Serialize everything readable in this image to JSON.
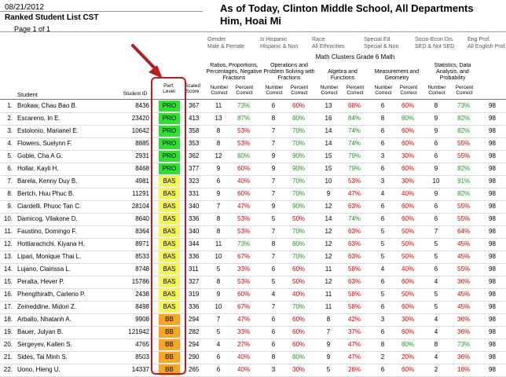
{
  "header": {
    "date": "08/21/2012",
    "report_title": "Ranked Student List CST",
    "page_label": "Page 1 of 1",
    "main_title": "As of Today, Clinton Middle School, All Departments",
    "sub_title": "Him, Hoai Mi"
  },
  "filters": [
    {
      "label": "Gender",
      "value": "Male & Female"
    },
    {
      "label": "Is Hispanic",
      "value": "Hispanic & Non"
    },
    {
      "label": "Race",
      "value": "All Ethnicities"
    },
    {
      "label": "Special Ed.",
      "value": "Special & Non"
    },
    {
      "label": "Socio-Econ Dis.",
      "value": "SED & Not SED"
    },
    {
      "label": "Eng Prof.",
      "value": "All English Prof."
    }
  ],
  "group_header": "Math Clusters Grade 6 Math",
  "clusters": [
    "Ratios, Proportions, Percentages, Negative Fractions",
    "Operations and Problem Solving with Fractions",
    "Algebra and Functions",
    "Measurement and Geometry",
    "Statistics, Data Analysis, and Probability"
  ],
  "columns": {
    "student": "Student",
    "student_id": "Student ID",
    "perf_level": "Perf. Level",
    "scaled_score": "Scaled Score",
    "number_correct": "Number Correct",
    "percent_correct": "Percent Correct"
  },
  "colors": {
    "PRO": "#33dd33",
    "BAS": "#f7f35a",
    "BB": "#f5a623",
    "good": "#1a9a1a",
    "bad": "#d40000",
    "callout": "#b91d1d"
  },
  "students": [
    {
      "rank": "1.",
      "name": "Brokaw, Chau Bao B.",
      "id": "8436",
      "level": "PRO",
      "score": "367",
      "c": [
        [
          "11",
          "73%"
        ],
        [
          "6",
          "60%"
        ],
        [
          "13",
          "68%"
        ],
        [
          "6",
          "60%"
        ],
        [
          "8",
          "73%"
        ]
      ],
      "last": "98"
    },
    {
      "rank": "2.",
      "name": "Escareno, In E.",
      "id": "23420",
      "level": "PRO",
      "score": "413",
      "c": [
        [
          "13",
          "87%"
        ],
        [
          "8",
          "80%"
        ],
        [
          "16",
          "84%"
        ],
        [
          "8",
          "80%"
        ],
        [
          "9",
          "82%"
        ]
      ],
      "last": "98"
    },
    {
      "rank": "3.",
      "name": "Estolonio, Marianel E.",
      "id": "10642",
      "level": "PRO",
      "score": "358",
      "c": [
        [
          "8",
          "53%"
        ],
        [
          "7",
          "70%"
        ],
        [
          "14",
          "74%"
        ],
        [
          "6",
          "60%"
        ],
        [
          "9",
          "82%"
        ]
      ],
      "last": "98"
    },
    {
      "rank": "4.",
      "name": "Flowers, Suelynn F.",
      "id": "8885",
      "level": "PRO",
      "score": "353",
      "c": [
        [
          "8",
          "53%"
        ],
        [
          "7",
          "70%"
        ],
        [
          "14",
          "74%"
        ],
        [
          "6",
          "60%"
        ],
        [
          "6",
          "55%"
        ]
      ],
      "last": "98"
    },
    {
      "rank": "5.",
      "name": "Goble, Cha A G.",
      "id": "2931",
      "level": "PRO",
      "score": "362",
      "c": [
        [
          "12",
          "80%"
        ],
        [
          "9",
          "90%"
        ],
        [
          "15",
          "79%"
        ],
        [
          "3",
          "30%"
        ],
        [
          "6",
          "55%"
        ]
      ],
      "last": "98"
    },
    {
      "rank": "6.",
      "name": "Hollar, Kayli H.",
      "id": "8468",
      "level": "PRO",
      "score": "377",
      "c": [
        [
          "9",
          "60%"
        ],
        [
          "9",
          "90%"
        ],
        [
          "15",
          "79%"
        ],
        [
          "6",
          "60%"
        ],
        [
          "9",
          "82%"
        ]
      ],
      "last": "98"
    },
    {
      "rank": "7.",
      "name": "Barela, Kenny Duy B.",
      "id": "4981",
      "level": "BAS",
      "score": "323",
      "c": [
        [
          "6",
          "40%"
        ],
        [
          "7",
          "70%"
        ],
        [
          "10",
          "53%"
        ],
        [
          "3",
          "30%"
        ],
        [
          "10",
          "91%"
        ]
      ],
      "last": "98"
    },
    {
      "rank": "8.",
      "name": "Bertch, Huu Phuc B.",
      "id": "11291",
      "level": "BAS",
      "score": "331",
      "c": [
        [
          "9",
          "60%"
        ],
        [
          "7",
          "70%"
        ],
        [
          "9",
          "47%"
        ],
        [
          "4",
          "40%"
        ],
        [
          "9",
          "82%"
        ]
      ],
      "last": "98"
    },
    {
      "rank": "9.",
      "name": "Ciardelli, Phuoc Tan C.",
      "id": "28104",
      "level": "BAS",
      "score": "340",
      "c": [
        [
          "7",
          "47%"
        ],
        [
          "9",
          "90%"
        ],
        [
          "12",
          "63%"
        ],
        [
          "6",
          "60%"
        ],
        [
          "6",
          "55%"
        ]
      ],
      "last": "98"
    },
    {
      "rank": "10.",
      "name": "Damicog, Vilakone D.",
      "id": "8640",
      "level": "BAS",
      "score": "336",
      "c": [
        [
          "8",
          "53%"
        ],
        [
          "5",
          "50%"
        ],
        [
          "14",
          "74%"
        ],
        [
          "6",
          "60%"
        ],
        [
          "6",
          "55%"
        ]
      ],
      "last": "98"
    },
    {
      "rank": "11.",
      "name": "Faustino, Domingo F.",
      "id": "8364",
      "level": "BAS",
      "score": "340",
      "c": [
        [
          "8",
          "53%"
        ],
        [
          "7",
          "70%"
        ],
        [
          "12",
          "63%"
        ],
        [
          "5",
          "50%"
        ],
        [
          "7",
          "64%"
        ]
      ],
      "last": "98"
    },
    {
      "rank": "12.",
      "name": "Hottiarachchi, Kiyana H.",
      "id": "8971",
      "level": "BAS",
      "score": "344",
      "c": [
        [
          "11",
          "73%"
        ],
        [
          "8",
          "80%"
        ],
        [
          "12",
          "63%"
        ],
        [
          "5",
          "50%"
        ],
        [
          "5",
          "45%"
        ]
      ],
      "last": "98"
    },
    {
      "rank": "13.",
      "name": "Lipari, Monique Thai L.",
      "id": "8533",
      "level": "BAS",
      "score": "336",
      "c": [
        [
          "10",
          "67%"
        ],
        [
          "7",
          "70%"
        ],
        [
          "12",
          "63%"
        ],
        [
          "5",
          "50%"
        ],
        [
          "5",
          "45%"
        ]
      ],
      "last": "98"
    },
    {
      "rank": "14.",
      "name": "Lujano, Clairissa L.",
      "id": "8748",
      "level": "BAS",
      "score": "311",
      "c": [
        [
          "5",
          "33%"
        ],
        [
          "6",
          "60%"
        ],
        [
          "11",
          "58%"
        ],
        [
          "4",
          "40%"
        ],
        [
          "6",
          "55%"
        ]
      ],
      "last": "98"
    },
    {
      "rank": "15.",
      "name": "Peralta, Hever P.",
      "id": "15786",
      "level": "BAS",
      "score": "327",
      "c": [
        [
          "8",
          "53%"
        ],
        [
          "5",
          "50%"
        ],
        [
          "12",
          "63%"
        ],
        [
          "6",
          "60%"
        ],
        [
          "4",
          "36%"
        ]
      ],
      "last": "98"
    },
    {
      "rank": "16.",
      "name": "Phengthirath, Carleno P.",
      "id": "2438",
      "level": "BAS",
      "score": "319",
      "c": [
        [
          "9",
          "60%"
        ],
        [
          "4",
          "40%"
        ],
        [
          "11",
          "58%"
        ],
        [
          "5",
          "50%"
        ],
        [
          "5",
          "45%"
        ]
      ],
      "last": "98"
    },
    {
      "rank": "17.",
      "name": "Zeineddine, Midori Z.",
      "id": "8498",
      "level": "BAS",
      "score": "336",
      "c": [
        [
          "10",
          "67%"
        ],
        [
          "7",
          "70%"
        ],
        [
          "11",
          "58%"
        ],
        [
          "6",
          "60%"
        ],
        [
          "5",
          "45%"
        ]
      ],
      "last": "98"
    },
    {
      "rank": "18.",
      "name": "Arballo, Nhatanh A.",
      "id": "9908",
      "level": "BB",
      "score": "294",
      "c": [
        [
          "7",
          "47%"
        ],
        [
          "6",
          "60%"
        ],
        [
          "8",
          "42%"
        ],
        [
          "3",
          "30%"
        ],
        [
          "4",
          "36%"
        ]
      ],
      "last": "98"
    },
    {
      "rank": "19.",
      "name": "Bauer, Julyan B.",
      "id": "121942",
      "level": "BB",
      "score": "282",
      "c": [
        [
          "5",
          "33%"
        ],
        [
          "6",
          "60%"
        ],
        [
          "7",
          "37%"
        ],
        [
          "6",
          "60%"
        ],
        [
          "4",
          "36%"
        ]
      ],
      "last": "98"
    },
    {
      "rank": "20.",
      "name": "Sergeyev, Kallen S.",
      "id": "4765",
      "level": "BB",
      "score": "294",
      "c": [
        [
          "4",
          "27%"
        ],
        [
          "6",
          "60%"
        ],
        [
          "9",
          "47%"
        ],
        [
          "8",
          "80%"
        ],
        [
          "8",
          "73%"
        ]
      ],
      "last": "98"
    },
    {
      "rank": "21.",
      "name": "Sides, Tai Minh S.",
      "id": "8503",
      "level": "BB",
      "score": "290",
      "c": [
        [
          "6",
          "40%"
        ],
        [
          "8",
          "80%"
        ],
        [
          "9",
          "47%"
        ],
        [
          "2",
          "20%"
        ],
        [
          "4",
          "36%"
        ]
      ],
      "last": "98"
    },
    {
      "rank": "22.",
      "name": "Uono, Hieng U.",
      "id": "14337",
      "level": "BB",
      "score": "265",
      "c": [
        [
          "6",
          "40%"
        ],
        [
          "3",
          "30%"
        ],
        [
          "5",
          "26%"
        ],
        [
          "6",
          "60%"
        ],
        [
          "2",
          "18%"
        ]
      ],
      "last": "98"
    }
  ]
}
